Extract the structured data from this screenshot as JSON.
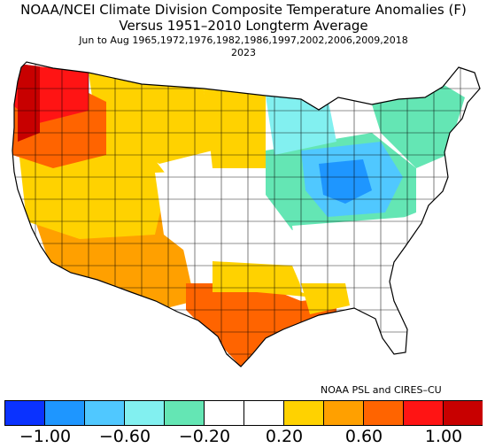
{
  "header": {
    "title_line1": "NOAA/NCEI Climate Division Composite Temperature Anomalies (F)",
    "title_line2": "Versus 1951–2010 Longterm Average",
    "season_years": "Jun to Aug   1965,1972,1976,1982,1986,1997,2002,2006,2009,2018",
    "target_year": "2023"
  },
  "credit": "NOAA PSL and CIRES–CU",
  "legend": {
    "colors": [
      "#0a32ff",
      "#1e96ff",
      "#50c8ff",
      "#82f0f0",
      "#64e6b4",
      "#ffffff",
      "#ffffff",
      "#ffd200",
      "#ffa000",
      "#ff6400",
      "#ff1414",
      "#c80000"
    ],
    "tick_labels": [
      "−1.00",
      "−0.60",
      "−0.20",
      "0.20",
      "0.60",
      "1.00"
    ]
  },
  "map_regions": [
    {
      "name": "pacific-northwest-coast",
      "anomaly": "> 1.00",
      "color": "#c80000"
    },
    {
      "name": "washington-interior",
      "anomaly": "0.60 to 1.00",
      "color": "#ff1414"
    },
    {
      "name": "oregon-idaho",
      "anomaly": "0.40 to 0.80",
      "color": "#ff6400"
    },
    {
      "name": "california-great-basin",
      "anomaly": "0.20 to 0.40",
      "color": "#ffd200"
    },
    {
      "name": "southwest",
      "anomaly": "0.40 to 0.60",
      "color": "#ffa000"
    },
    {
      "name": "texas-gulf-coast",
      "anomaly": "0.60 to 1.00",
      "color": "#ff6400"
    },
    {
      "name": "central-plains",
      "anomaly": "-0.20 to 0.20",
      "color": "#ffffff"
    },
    {
      "name": "ohio-valley-great-lakes",
      "anomaly": "-0.60 to -0.20",
      "color": "#50c8ff"
    },
    {
      "name": "northeast",
      "anomaly": "-0.20 to -0.40",
      "color": "#64e6b4"
    }
  ]
}
